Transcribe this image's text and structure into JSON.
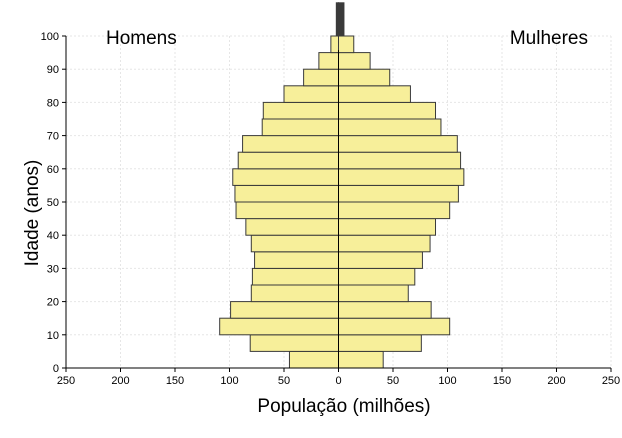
{
  "chart_data": {
    "type": "bar",
    "orientation": "horizontal",
    "subtype": "population-pyramid",
    "left_group_label": "Homens",
    "right_group_label": "Mulheres",
    "xlabel": "População (milhões)",
    "ylabel": "Idade (anos)",
    "xlim": [
      -250,
      250
    ],
    "ylim": [
      0,
      100
    ],
    "x_ticks": [
      -250,
      -200,
      -150,
      -100,
      -50,
      0,
      50,
      100,
      150,
      200,
      250
    ],
    "x_tick_labels": [
      "250",
      "200",
      "150",
      "100",
      "50",
      "0",
      "50",
      "100",
      "150",
      "200",
      "250"
    ],
    "y_ticks": [
      0,
      10,
      20,
      30,
      40,
      50,
      60,
      70,
      80,
      90,
      100
    ],
    "y_tick_labels": [
      "0",
      "10",
      "20",
      "30",
      "40",
      "50",
      "60",
      "70",
      "80",
      "90",
      "100"
    ],
    "age_groups": [
      [
        0,
        5
      ],
      [
        5,
        10
      ],
      [
        10,
        15
      ],
      [
        15,
        20
      ],
      [
        20,
        25
      ],
      [
        25,
        30
      ],
      [
        30,
        35
      ],
      [
        35,
        40
      ],
      [
        40,
        45
      ],
      [
        45,
        50
      ],
      [
        50,
        55
      ],
      [
        55,
        60
      ],
      [
        60,
        65
      ],
      [
        65,
        70
      ],
      [
        70,
        75
      ],
      [
        75,
        80
      ],
      [
        80,
        85
      ],
      [
        85,
        90
      ],
      [
        90,
        95
      ],
      [
        95,
        100
      ],
      [
        100,
        110
      ]
    ],
    "series": [
      {
        "name": "Homens",
        "values": [
          45,
          81,
          109,
          99,
          80,
          79,
          77,
          80,
          85,
          94,
          95,
          97,
          92,
          88,
          70,
          69,
          50,
          32,
          18,
          7,
          2
        ]
      },
      {
        "name": "Mulheres",
        "values": [
          41,
          76,
          102,
          85,
          64,
          70,
          77,
          84,
          89,
          102,
          110,
          115,
          112,
          109,
          94,
          89,
          66,
          47,
          29,
          14,
          5
        ]
      }
    ],
    "grid": true,
    "colors": {
      "bar_fill": "#f7ef9a",
      "bar_stroke": "#3a3a3a"
    }
  }
}
